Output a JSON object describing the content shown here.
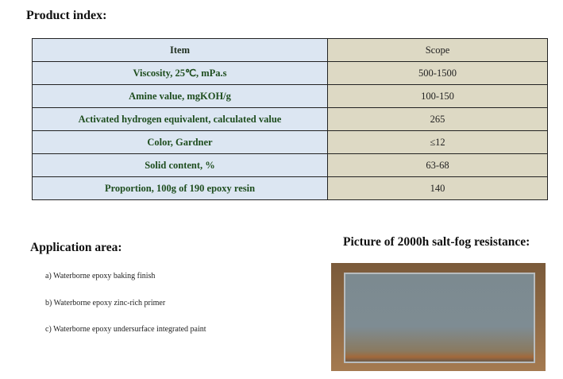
{
  "product_index": {
    "title": "Product index:",
    "header": [
      "Item",
      "Scope"
    ],
    "rows": [
      [
        "Viscosity, 25℃, mPa.s",
        "500-1500"
      ],
      [
        "Amine value, mgKOH/g",
        "100-150"
      ],
      [
        "Activated hydrogen equivalent, calculated value",
        "265"
      ],
      [
        "Color, Gardner",
        "≤12"
      ],
      [
        "Solid content, %",
        "63-68"
      ],
      [
        "Proportion, 100g of 190 epoxy resin",
        "140"
      ]
    ]
  },
  "application": {
    "title": "Application area:",
    "items": [
      "a) Waterborne epoxy baking finish",
      "b) Waterborne epoxy zinc-rich primer",
      "c) Waterborne epoxy undersurface integrated paint"
    ]
  },
  "picture": {
    "title": "Picture of 2000h salt-fog resistance:"
  }
}
